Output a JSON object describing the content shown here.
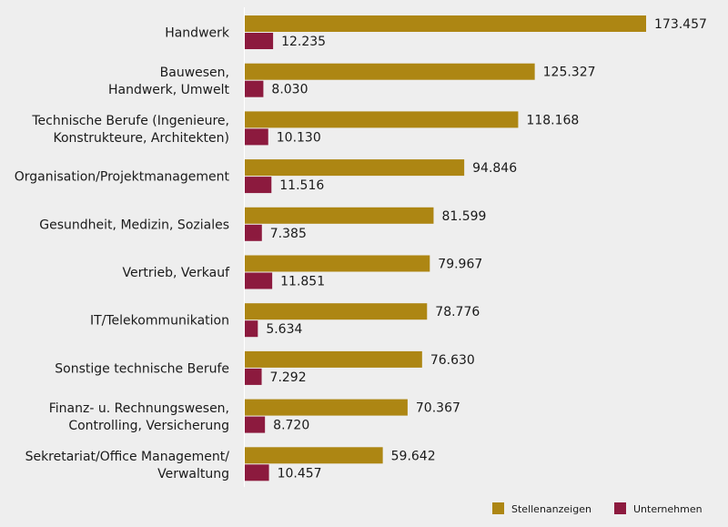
{
  "chart_data": {
    "type": "bar",
    "orientation": "horizontal",
    "categories": [
      [
        "Handwerk"
      ],
      [
        "Bauwesen,",
        "Handwerk, Umwelt"
      ],
      [
        "Technische Berufe (Ingenieure,",
        "Konstrukteure, Architekten)"
      ],
      [
        "Organisation/Projektmanagement"
      ],
      [
        "Gesundheit, Medizin, Soziales"
      ],
      [
        "Vertrieb, Verkauf"
      ],
      [
        "IT/Telekommunikation"
      ],
      [
        "Sonstige technische Berufe"
      ],
      [
        "Finanz- u. Rechnungswesen,",
        "Controlling, Versicherung"
      ],
      [
        "Sekretariat/Office Management/",
        "Verwaltung"
      ]
    ],
    "series": [
      {
        "name": "Stellenanzeigen",
        "color": "#ad8613",
        "values": [
          173457,
          125327,
          118168,
          94846,
          81599,
          79967,
          78776,
          76630,
          70367,
          59642
        ],
        "labels": [
          "173.457",
          "125.327",
          "118.168",
          "94.846",
          "81.599",
          "79.967",
          "78.776",
          "76.630",
          "70.367",
          "59.642"
        ]
      },
      {
        "name": "Unternehmen",
        "color": "#8c1a3e",
        "values": [
          12235,
          8030,
          10130,
          11516,
          7385,
          11851,
          5634,
          7292,
          8720,
          10457
        ],
        "labels": [
          "12.235",
          "8.030",
          "10.130",
          "11.516",
          "7.385",
          "11.851",
          "5.634",
          "7.292",
          "8.720",
          "10.457"
        ]
      }
    ],
    "legend": {
      "position": "bottom-right"
    },
    "grid": false,
    "xlim": [
      0,
      173457
    ]
  }
}
